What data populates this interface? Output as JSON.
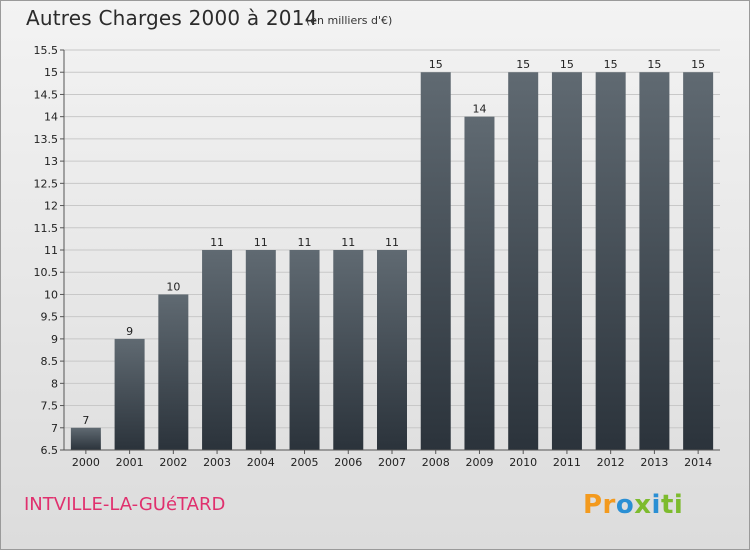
{
  "header": {
    "title": "Autres Charges 2000 à 2014",
    "subtitle": "(en milliers d'€)"
  },
  "footer": {
    "commune": "INTVILLE-LA-GUéTARD",
    "brand_parts": [
      {
        "text": "Pr",
        "color": "#f39a1e"
      },
      {
        "text": "o",
        "color": "#2a8fd4"
      },
      {
        "text": "x",
        "color": "#7dbb2e"
      },
      {
        "text": "i",
        "color": "#2a8fd4"
      },
      {
        "text": "ti",
        "color": "#7dbb2e"
      }
    ]
  },
  "colors": {
    "bar_top": "#606a72",
    "bar_bottom": "#2b333b",
    "grid": "#c8c8c8",
    "axis": "#555555",
    "commune": "#e0306e"
  },
  "chart_data": {
    "type": "bar",
    "title": "Autres Charges 2000 à 2014",
    "subtitle": "(en milliers d'€)",
    "categories": [
      "2000",
      "2001",
      "2002",
      "2003",
      "2004",
      "2005",
      "2006",
      "2007",
      "2008",
      "2009",
      "2010",
      "2011",
      "2012",
      "2013",
      "2014"
    ],
    "values": [
      7,
      9,
      10,
      11,
      11,
      11,
      11,
      11,
      15,
      14,
      15,
      15,
      15,
      15,
      15
    ],
    "ylim": [
      6.5,
      15.5
    ],
    "yticks": [
      "6.5",
      "7",
      "7.5",
      "8",
      "8.5",
      "9",
      "9.5",
      "10",
      "10.5",
      "11",
      "11.5",
      "12",
      "12.5",
      "13",
      "13.5",
      "14",
      "14.5",
      "15",
      "15.5"
    ],
    "grid": true,
    "legend": "none"
  }
}
